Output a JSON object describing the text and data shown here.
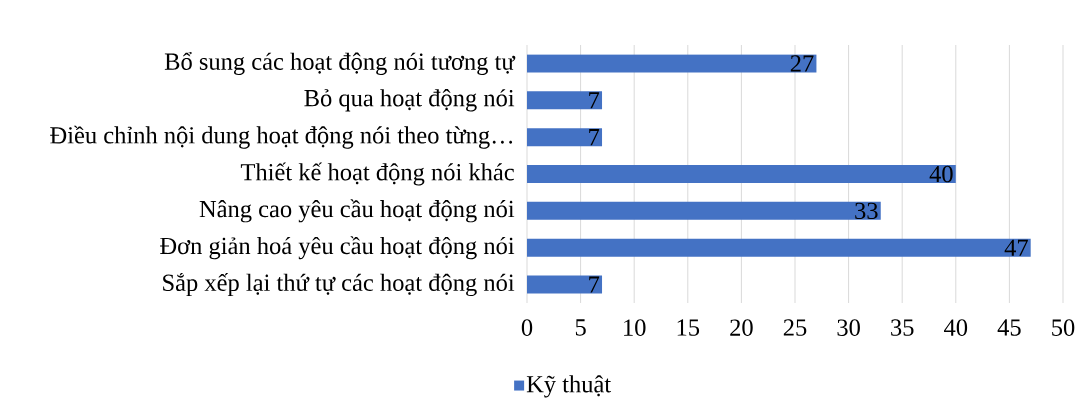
{
  "chart_data": {
    "type": "bar",
    "orientation": "horizontal",
    "categories": [
      "Bổ sung các hoạt động nói tương tự",
      "Bỏ qua hoạt động nói",
      "Điều chỉnh nội dung hoạt động nói theo từng…",
      "Thiết kế hoạt động nói khác",
      "Nâng cao yêu cầu hoạt động nói",
      "Đơn giản hoá yêu cầu hoạt động nói",
      "Sắp xếp lại thứ tự các hoạt động nói"
    ],
    "series": [
      {
        "name": "Kỹ thuật",
        "color": "#4472c4",
        "values": [
          27,
          7,
          7,
          40,
          33,
          47,
          7
        ]
      }
    ],
    "xlim": [
      0,
      50
    ],
    "xticks": [
      0,
      5,
      10,
      15,
      20,
      25,
      30,
      35,
      40,
      45,
      50
    ],
    "grid": "x",
    "legend": "bottom",
    "data_labels": true
  }
}
